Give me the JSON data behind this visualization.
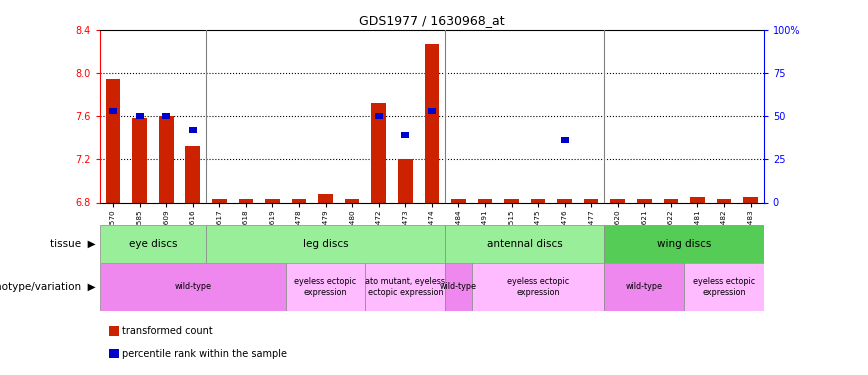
{
  "title": "GDS1977 / 1630968_at",
  "samples": [
    "GSM91570",
    "GSM91585",
    "GSM91609",
    "GSM91616",
    "GSM91617",
    "GSM91618",
    "GSM91619",
    "GSM91478",
    "GSM91479",
    "GSM91480",
    "GSM91472",
    "GSM91473",
    "GSM91474",
    "GSM91484",
    "GSM91491",
    "GSM91515",
    "GSM91475",
    "GSM91476",
    "GSM91477",
    "GSM91620",
    "GSM91621",
    "GSM91622",
    "GSM91481",
    "GSM91482",
    "GSM91483"
  ],
  "red_values": [
    7.95,
    7.58,
    7.6,
    7.32,
    6.83,
    6.83,
    6.83,
    6.83,
    6.88,
    6.83,
    7.72,
    7.2,
    8.27,
    6.83,
    6.83,
    6.83,
    6.83,
    6.83,
    6.83,
    6.83,
    6.83,
    6.83,
    6.85,
    6.83,
    6.85
  ],
  "blue_values": [
    7.65,
    7.6,
    7.6,
    7.47,
    null,
    null,
    null,
    null,
    null,
    null,
    7.6,
    7.43,
    7.65,
    null,
    null,
    null,
    null,
    7.38,
    null,
    null,
    null,
    null,
    null,
    null,
    null
  ],
  "ylim": [
    6.8,
    8.4
  ],
  "yticks_left": [
    6.8,
    7.2,
    7.6,
    8.0,
    8.4
  ],
  "yticks_right": [
    0,
    25,
    50,
    75,
    100
  ],
  "dotted_lines": [
    8.0,
    7.6,
    7.2
  ],
  "bar_color": "#cc2200",
  "blue_color": "#0000cc",
  "tissue_boundaries": [
    {
      "label": "eye discs",
      "start": 0,
      "end": 3,
      "color": "#99ee99"
    },
    {
      "label": "leg discs",
      "start": 4,
      "end": 12,
      "color": "#99ee99"
    },
    {
      "label": "antennal discs",
      "start": 13,
      "end": 18,
      "color": "#99ee99"
    },
    {
      "label": "wing discs",
      "start": 19,
      "end": 24,
      "color": "#55cc55"
    }
  ],
  "geno_groups": [
    {
      "label": "wild-type",
      "start": 0,
      "end": 6,
      "color": "#ee88ee"
    },
    {
      "label": "eyeless ectopic\nexpression",
      "start": 7,
      "end": 9,
      "color": "#ffbbff"
    },
    {
      "label": "ato mutant, eyeless\nectopic expression",
      "start": 10,
      "end": 12,
      "color": "#ffbbff"
    },
    {
      "label": "wild-type",
      "start": 13,
      "end": 13,
      "color": "#ee88ee"
    },
    {
      "label": "eyeless ectopic\nexpression",
      "start": 14,
      "end": 18,
      "color": "#ffbbff"
    },
    {
      "label": "wild-type",
      "start": 19,
      "end": 21,
      "color": "#ee88ee"
    },
    {
      "label": "eyeless ectopic\nexpression",
      "start": 22,
      "end": 24,
      "color": "#ffbbff"
    }
  ],
  "group_dividers": [
    4,
    13,
    19
  ],
  "legend_items": [
    {
      "label": "transformed count",
      "color": "#cc2200"
    },
    {
      "label": "percentile rank within the sample",
      "color": "#0000cc"
    }
  ]
}
